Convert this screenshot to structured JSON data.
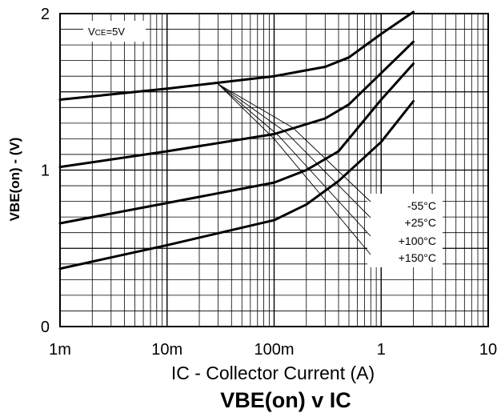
{
  "chart_data": {
    "type": "line",
    "title": "VBE(on) v IC",
    "xlabel": "IC - Collector Current (A)",
    "ylabel": "VBE(on) - (V)",
    "x_scale": "log",
    "xlim": [
      0.001,
      10
    ],
    "ylim": [
      0,
      2
    ],
    "x_ticks": [
      {
        "value": 0.001,
        "label": "1m"
      },
      {
        "value": 0.01,
        "label": "10m"
      },
      {
        "value": 0.1,
        "label": "100m"
      },
      {
        "value": 1,
        "label": "1"
      },
      {
        "value": 10,
        "label": "10"
      }
    ],
    "y_ticks": [
      {
        "value": 0,
        "label": "0"
      },
      {
        "value": 1,
        "label": "1"
      },
      {
        "value": 2,
        "label": "2"
      }
    ],
    "grid": true,
    "condition_label": {
      "main": "V",
      "sub": "CE",
      "rest": "=5V"
    },
    "legend": [
      "-55°C",
      "+25°C",
      "+100°C",
      "+150°C"
    ],
    "series": [
      {
        "name": "-55°C",
        "x": [
          0.001,
          0.01,
          0.1,
          0.3,
          0.5,
          1,
          2
        ],
        "y": [
          1.45,
          1.52,
          1.6,
          1.66,
          1.72,
          1.87,
          2.01
        ]
      },
      {
        "name": "+25°C",
        "x": [
          0.001,
          0.01,
          0.1,
          0.3,
          0.5,
          1,
          2
        ],
        "y": [
          1.02,
          1.12,
          1.23,
          1.33,
          1.42,
          1.62,
          1.82
        ]
      },
      {
        "name": "+100°C",
        "x": [
          0.001,
          0.01,
          0.1,
          0.2,
          0.4,
          1,
          2
        ],
        "y": [
          0.66,
          0.79,
          0.92,
          1.0,
          1.12,
          1.45,
          1.68
        ]
      },
      {
        "name": "+150°C",
        "x": [
          0.001,
          0.01,
          0.1,
          0.2,
          0.4,
          1,
          2
        ],
        "y": [
          0.37,
          0.52,
          0.68,
          0.78,
          0.93,
          1.18,
          1.44
        ]
      }
    ]
  }
}
